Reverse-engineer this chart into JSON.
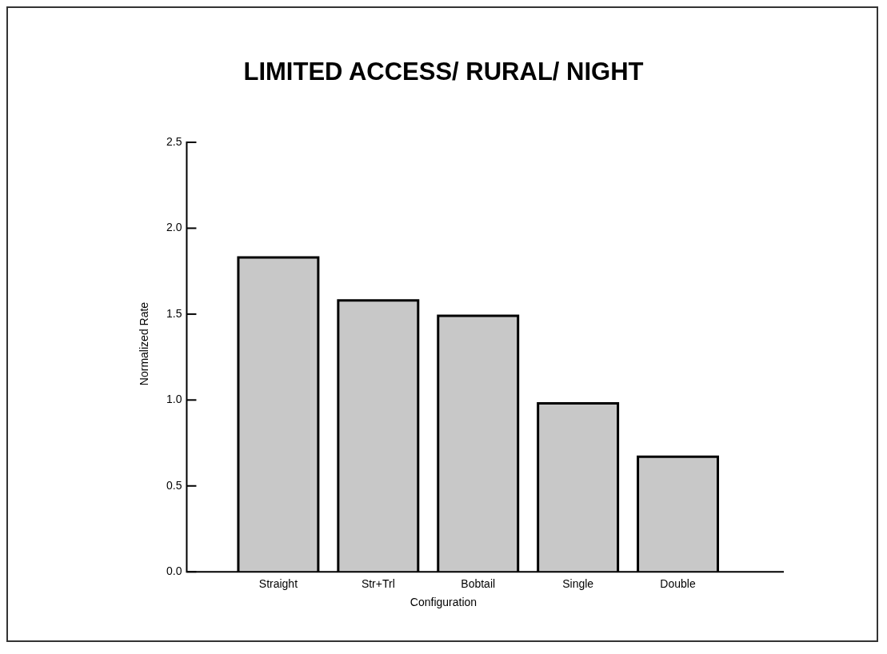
{
  "chart_data": {
    "type": "bar",
    "title": "LIMITED ACCESS/ RURAL/ NIGHT",
    "xlabel": "Configuration",
    "ylabel": "Normalized Rate",
    "categories": [
      "Straight",
      "Str+Trl",
      "Bobtail",
      "Single",
      "Double"
    ],
    "values": [
      1.83,
      1.58,
      1.49,
      0.98,
      0.67
    ],
    "color": "#c8c8c8",
    "ylim": [
      0,
      2.5
    ],
    "yticks": [
      {
        "value": 0,
        "label": "0.0"
      },
      {
        "value": 0.5,
        "label": "0.5"
      },
      {
        "value": 1,
        "label": "1.0"
      },
      {
        "value": 1.5,
        "label": "1.5"
      },
      {
        "value": 2,
        "label": "2.0"
      },
      {
        "value": 2.5,
        "label": "2.5"
      }
    ],
    "grid": false,
    "legend": false
  }
}
